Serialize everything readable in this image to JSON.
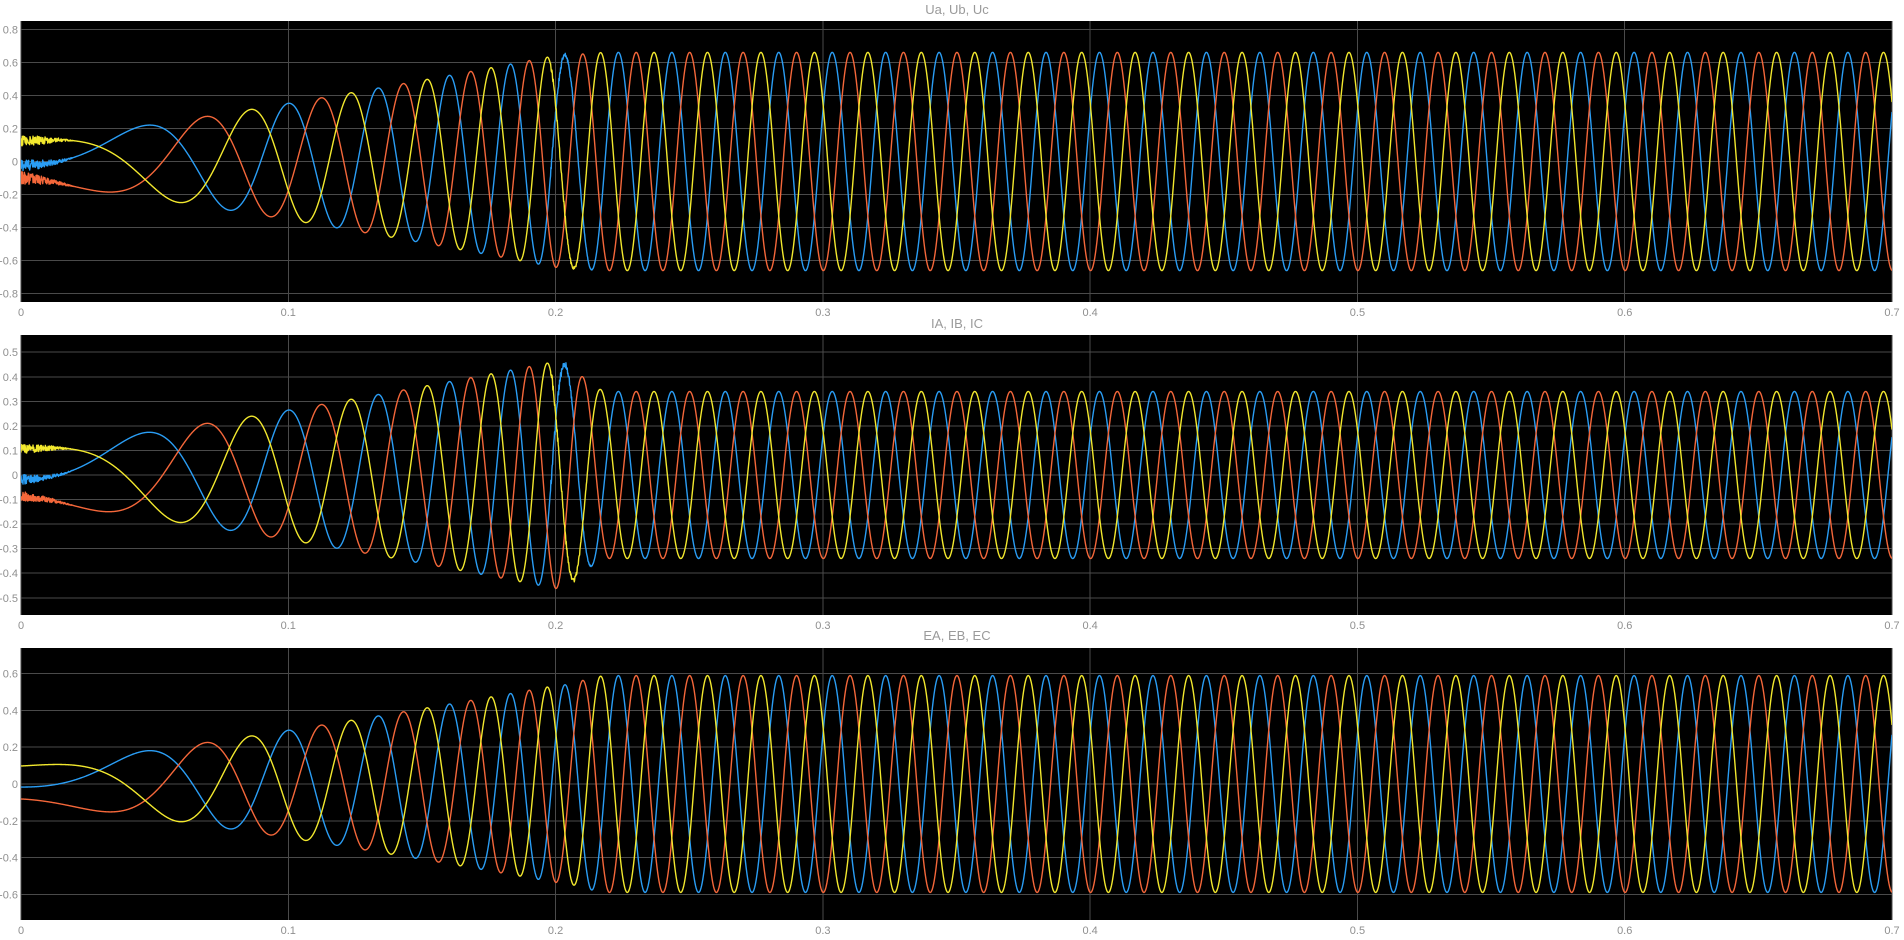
{
  "colors": {
    "background": "#ffffff",
    "axes": "#000000",
    "grid": "#4a4a4a",
    "text": "#8f8f8f",
    "blue": "#2a9df4",
    "orange": "#f4673a",
    "yellow": "#f2e82e"
  },
  "chart_data": [
    {
      "type": "line",
      "title": "Ua, Ub, Uc",
      "xlim": [
        0,
        0.7
      ],
      "ylim": [
        -0.85,
        0.85
      ],
      "xticks": [
        0,
        0.1,
        0.2,
        0.3,
        0.4,
        0.5,
        0.6,
        0.7
      ],
      "xtick_labels": [
        "0",
        "0.1",
        "0.2",
        "0.3",
        "0.4",
        "0.5",
        "0.6",
        "0.7"
      ],
      "yticks": [
        0.8,
        0.6,
        0.4,
        0.2,
        0,
        -0.2,
        -0.4,
        -0.6,
        -0.8
      ],
      "ytick_labels": [
        "0.8",
        "0.6",
        "0.4",
        "0.2",
        "0",
        "-0.2",
        "-0.4",
        "-0.6",
        "-0.8"
      ],
      "grid": true,
      "steady_amplitude": 0.66,
      "transient_peaks": [
        0.37,
        0.5,
        0.61
      ],
      "startup_noise": true,
      "spike_at_0_2": 0.74,
      "series": [
        {
          "color": "#2a9df4",
          "phase_index": 0
        },
        {
          "color": "#f4673a",
          "phase_index": 1
        },
        {
          "color": "#f2e82e",
          "phase_index": 2
        }
      ]
    },
    {
      "type": "line",
      "title": "IA, IB, IC",
      "xlim": [
        0,
        0.7
      ],
      "ylim": [
        -0.57,
        0.57
      ],
      "xticks": [
        0,
        0.1,
        0.2,
        0.3,
        0.4,
        0.5,
        0.6,
        0.7
      ],
      "xtick_labels": [
        "0",
        "0.1",
        "0.2",
        "0.3",
        "0.4",
        "0.5",
        "0.6",
        "0.7"
      ],
      "yticks": [
        0.5,
        0.4,
        0.3,
        0.2,
        0.1,
        0,
        -0.1,
        -0.2,
        -0.3,
        -0.4,
        -0.5
      ],
      "ytick_labels": [
        "0.5",
        "0.4",
        "0.3",
        "0.2",
        "0.1",
        "0",
        "-0.1",
        "-0.2",
        "-0.3",
        "-0.4",
        "-0.5"
      ],
      "grid": true,
      "steady_amplitude": 0.34,
      "transient_peaks": [
        0.32,
        0.39,
        0.44
      ],
      "startup_noise": true,
      "spike_at_0_2": 0.47,
      "series": [
        {
          "color": "#2a9df4",
          "phase_index": 0
        },
        {
          "color": "#f4673a",
          "phase_index": 1
        },
        {
          "color": "#f2e82e",
          "phase_index": 2
        }
      ]
    },
    {
      "type": "line",
      "title": "EA, EB, EC",
      "xlim": [
        0,
        0.7
      ],
      "ylim": [
        -0.74,
        0.74
      ],
      "xticks": [
        0,
        0.1,
        0.2,
        0.3,
        0.4,
        0.5,
        0.6,
        0.7
      ],
      "xtick_labels": [
        "0",
        "0.1",
        "0.2",
        "0.3",
        "0.4",
        "0.5",
        "0.6",
        "0.7"
      ],
      "yticks": [
        0.6,
        0.4,
        0.2,
        0,
        -0.2,
        -0.4,
        -0.6
      ],
      "ytick_labels": [
        "0.6",
        "0.4",
        "0.2",
        "0",
        "-0.2",
        "-0.4",
        "-0.6"
      ],
      "grid": true,
      "steady_amplitude": 0.59,
      "transient_peaks": [
        0.3,
        0.42,
        0.51
      ],
      "startup_noise": false,
      "spike_at_0_2": 0.59,
      "series": [
        {
          "color": "#2a9df4",
          "phase_index": 0
        },
        {
          "color": "#f4673a",
          "phase_index": 1
        },
        {
          "color": "#f2e82e",
          "phase_index": 2
        }
      ]
    }
  ]
}
